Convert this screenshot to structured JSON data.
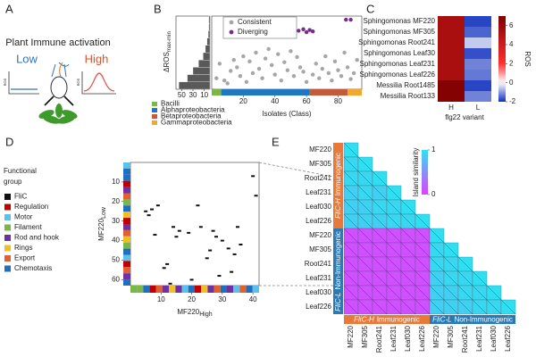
{
  "panel_a": {
    "panel": "A",
    "title": "Plant Immune activation",
    "low": "Low",
    "high": "High",
    "ros": "ROS"
  },
  "chart_data": [
    {
      "type": "scatter",
      "panel": "B",
      "ylabel": "ΔROS",
      "ylabel_sub": "max-min",
      "xlabel": "Isolates (Class)",
      "xlim": [
        0,
        95
      ],
      "ylim": [
        0,
        100
      ],
      "xticks": [
        20,
        40,
        60,
        80
      ],
      "series": [
        {
          "name": "Consistent",
          "color": "#a6a6a6",
          "x": [
            3,
            5,
            8,
            10,
            12,
            14,
            16,
            18,
            20,
            22,
            24,
            26,
            28,
            30,
            32,
            34,
            36,
            38,
            40,
            42,
            44,
            46,
            48,
            50,
            52,
            54,
            56,
            58,
            60,
            64,
            66,
            68,
            70,
            72,
            74,
            76,
            78,
            80,
            82,
            84,
            86,
            88,
            90,
            92
          ],
          "values": [
            15,
            35,
            12,
            8,
            25,
            40,
            30,
            18,
            45,
            10,
            38,
            22,
            50,
            28,
            15,
            42,
            55,
            33,
            20,
            48,
            12,
            37,
            26,
            52,
            18,
            44,
            30,
            24,
            10,
            20,
            35,
            15,
            28,
            45,
            22,
            12,
            38,
            26,
            18,
            50,
            30,
            14,
            22,
            40
          ]
        },
        {
          "name": "Diverging",
          "color": "#7b2a8e",
          "x": [
            55,
            58,
            60,
            62,
            64,
            85,
            88
          ],
          "values": [
            80,
            82,
            78,
            81,
            79,
            95,
            95
          ]
        }
      ],
      "histogram": {
        "bins": [
          0,
          10,
          20,
          30,
          40,
          50,
          60,
          70,
          80,
          90,
          100
        ],
        "counts": [
          55,
          40,
          30,
          20,
          12,
          8,
          5,
          3,
          2,
          2
        ],
        "color": "#595959",
        "xlim": [
          60,
          0
        ],
        "xticks": [
          50,
          30,
          10
        ]
      },
      "classes": [
        {
          "name": "Bacilli",
          "color": "#7ab648"
        },
        {
          "name": "Alphaproteobacteria",
          "color": "#1f77c4"
        },
        {
          "name": "Betaproteobacteria",
          "color": "#c55a3a"
        },
        {
          "name": "Gammaproteobacteria",
          "color": "#f0a830"
        }
      ],
      "class_strip": [
        {
          "class": 0,
          "start": 0,
          "end": 6
        },
        {
          "class": 1,
          "start": 6,
          "end": 62
        },
        {
          "class": 2,
          "start": 62,
          "end": 86
        },
        {
          "class": 3,
          "start": 86,
          "end": 95
        }
      ]
    },
    {
      "type": "heatmap",
      "panel": "C",
      "rows": [
        "Sphingomonas MF220",
        "Sphingomonas MF305",
        "Sphingomonas Root241",
        "Sphingomonas Leaf30",
        "Sphingomonas Leaf231",
        "Sphingomonas Leaf226",
        "Messilia Root1485",
        "Messilia Root133"
      ],
      "columns": [
        "H",
        "L"
      ],
      "values": [
        [
          5.4,
          -1.8
        ],
        [
          5.4,
          -1.5
        ],
        [
          5.4,
          -0.5
        ],
        [
          5.4,
          -1.7
        ],
        [
          5.4,
          -1.2
        ],
        [
          5.4,
          -1.3
        ],
        [
          6.8,
          -1.8
        ],
        [
          6.8,
          -1.2
        ]
      ],
      "xlabel": "flg22 variant",
      "colorbar_label": "ROS",
      "clim": [
        -2,
        7
      ],
      "cticks": [
        -2,
        0,
        2,
        4,
        6
      ]
    },
    {
      "type": "dash_scatter",
      "panel": "D",
      "legend_title": [
        "Functional",
        "group"
      ],
      "groups": [
        {
          "name": "FliC",
          "color": "#111111"
        },
        {
          "name": "Regulation",
          "color": "#c00000"
        },
        {
          "name": "Motor",
          "color": "#5bc0eb"
        },
        {
          "name": "Filament",
          "color": "#7ab648"
        },
        {
          "name": "Rod and hook",
          "color": "#7030a0"
        },
        {
          "name": "Rings",
          "color": "#f0c020"
        },
        {
          "name": "Export",
          "color": "#e06030"
        },
        {
          "name": "Chemotaxis",
          "color": "#1f6fbf"
        }
      ],
      "x": [
        40,
        41,
        5,
        6,
        7,
        9,
        8,
        22,
        23,
        14,
        15,
        16,
        19,
        27,
        28,
        35,
        30,
        32,
        12,
        11,
        26,
        25,
        34,
        33,
        13,
        20,
        36,
        29
      ],
      "values": [
        7,
        17,
        25,
        27,
        24,
        22,
        37,
        22,
        33,
        33,
        38,
        35,
        36,
        35,
        38,
        33,
        40,
        44,
        52,
        54,
        45,
        49,
        47,
        56,
        62,
        60,
        42,
        58
      ],
      "xlim": [
        0,
        42
      ],
      "ylim": [
        0,
        63
      ],
      "xticks": [
        10,
        20,
        30,
        40
      ],
      "yticks": [
        10,
        20,
        30,
        40,
        50,
        60
      ],
      "xlabel": "MF220",
      "xlabel_sub": "High",
      "ylabel": "MF220",
      "ylabel_sub": "Low",
      "x_strip": [
        3,
        3,
        7,
        1,
        6,
        4,
        5,
        4,
        2,
        7,
        1,
        5,
        4,
        6,
        7,
        4,
        2,
        6,
        7,
        2
      ],
      "y_strip": [
        2,
        7,
        7,
        1,
        4,
        6,
        3,
        7,
        5,
        1,
        4,
        6,
        5,
        3,
        7,
        2,
        1,
        6,
        4,
        7
      ]
    },
    {
      "type": "triangle_heatmap",
      "panel": "E",
      "rows": [
        "MF220",
        "MF305",
        "Root241",
        "Leaf231",
        "Leaf030",
        "Leaf226",
        "MF220",
        "MF305",
        "Root241",
        "Leaf231",
        "Leaf030",
        "Leaf226"
      ],
      "columns": [
        "MF220",
        "MF305",
        "Root241",
        "Leaf231",
        "Leaf030",
        "Leaf226",
        "MF220",
        "MF305",
        "Root241",
        "Leaf231",
        "Leaf030",
        "Leaf226"
      ],
      "values": [
        [
          1
        ],
        [
          0.95,
          1
        ],
        [
          0.95,
          0.95,
          1
        ],
        [
          0.9,
          0.95,
          0.9,
          1
        ],
        [
          0.9,
          0.9,
          0.95,
          0.95,
          1
        ],
        [
          0.9,
          0.9,
          0.9,
          0.95,
          0.95,
          1
        ],
        [
          0.1,
          0.1,
          0.1,
          0.1,
          0.1,
          0.1,
          1
        ],
        [
          0.1,
          0.1,
          0.1,
          0.1,
          0.1,
          0.1,
          0.95,
          1
        ],
        [
          0.1,
          0.1,
          0.1,
          0.1,
          0.1,
          0.1,
          0.95,
          0.95,
          1
        ],
        [
          0.1,
          0.1,
          0.1,
          0.1,
          0.1,
          0.1,
          0.9,
          0.95,
          0.95,
          1
        ],
        [
          0.1,
          0.1,
          0.1,
          0.1,
          0.1,
          0.1,
          0.9,
          0.9,
          0.95,
          0.95,
          1
        ],
        [
          0.1,
          0.1,
          0.1,
          0.1,
          0.1,
          0.1,
          0.9,
          0.9,
          0.9,
          0.95,
          0.95,
          1
        ]
      ],
      "row_groups": [
        {
          "italic": "FliC-H",
          "text": "Immunogenic",
          "color": "#e8793a"
        },
        {
          "italic": "FliC-L",
          "text": "Non-Immunogenic",
          "color": "#2a7ab8"
        }
      ],
      "colorbar_label": "Island similarity",
      "clim": [
        0,
        1
      ],
      "cticks": [
        0,
        1
      ]
    }
  ]
}
